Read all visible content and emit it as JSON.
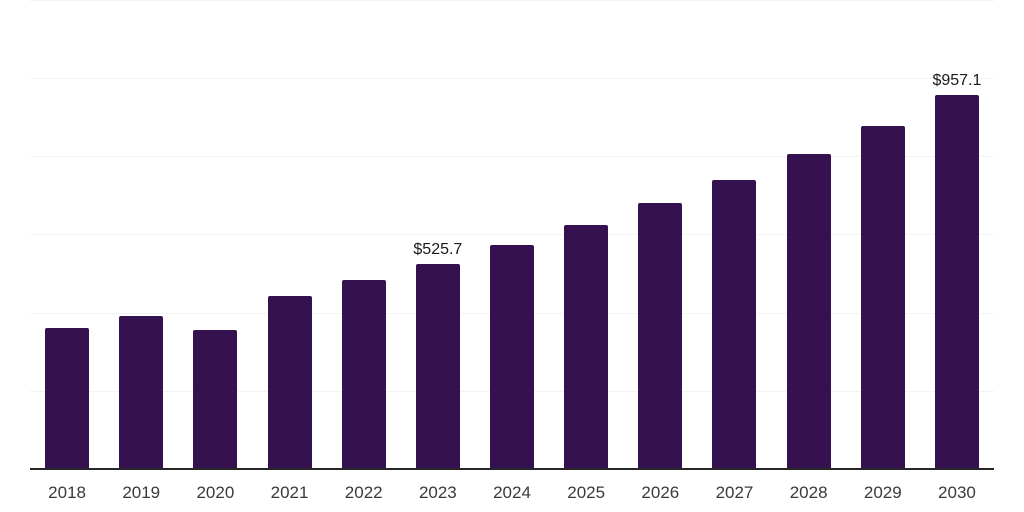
{
  "chart_data": {
    "type": "bar",
    "title": "",
    "xlabel": "",
    "ylabel": "",
    "categories": [
      "2018",
      "2019",
      "2020",
      "2021",
      "2022",
      "2023",
      "2024",
      "2025",
      "2026",
      "2027",
      "2028",
      "2029",
      "2030"
    ],
    "values": [
      359.9,
      391.3,
      354.7,
      442.9,
      482.4,
      525.7,
      572.7,
      623.9,
      679.6,
      740.3,
      806.5,
      878.6,
      957.1
    ],
    "value_labels": {
      "2023": "$525.7",
      "2030": "$957.1"
    },
    "ylim": [
      0,
      1200
    ],
    "gridline_interval": 200,
    "grid": "horizontal",
    "legend": "none",
    "y_axis_tick_labels": "none",
    "currency_prefix": "$"
  },
  "colors": {
    "background": "#ffffff",
    "bar": "#361150",
    "axis": "#262626",
    "gridline": "#f3f3f3",
    "year_label": "#3a3a3a",
    "value_label": "#1a1a1a"
  }
}
